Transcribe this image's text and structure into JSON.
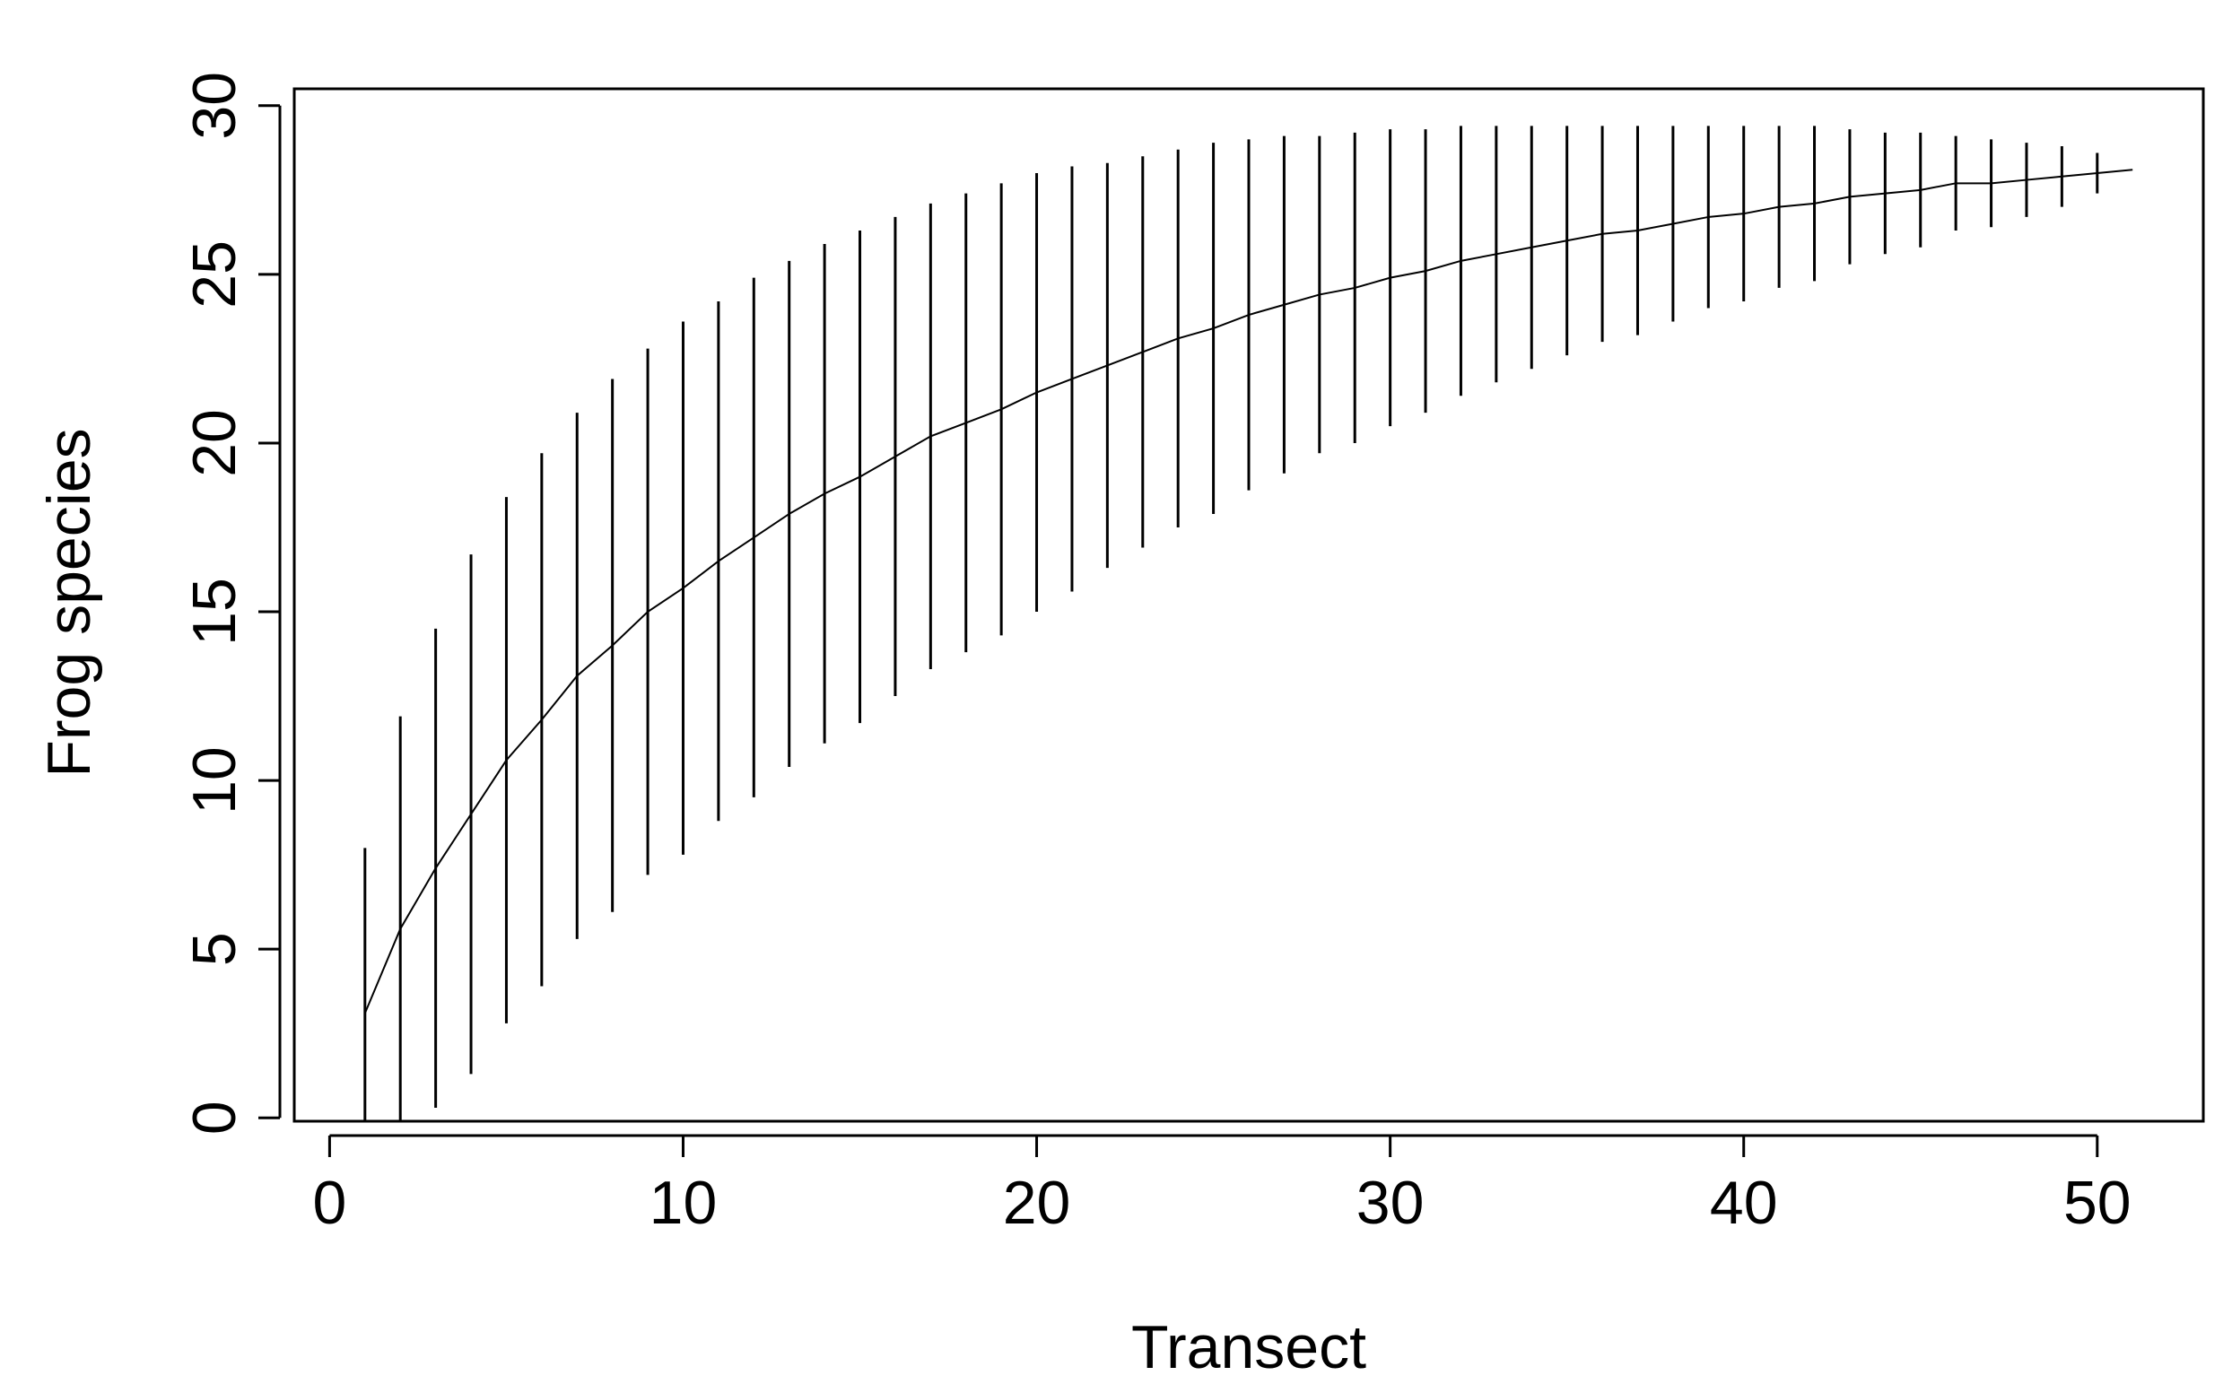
{
  "chart_data": {
    "type": "errorbar-line",
    "xlabel": "Transect",
    "ylabel": "Frog species",
    "x": [
      1,
      2,
      3,
      4,
      5,
      6,
      7,
      8,
      9,
      10,
      11,
      12,
      13,
      14,
      15,
      16,
      17,
      18,
      19,
      20,
      21,
      22,
      23,
      24,
      25,
      26,
      27,
      28,
      29,
      30,
      31,
      32,
      33,
      34,
      35,
      36,
      37,
      38,
      39,
      40,
      41,
      42,
      43,
      44,
      45,
      46,
      47,
      48,
      49,
      50,
      51
    ],
    "values": [
      3.1,
      5.6,
      7.4,
      9.0,
      10.6,
      11.8,
      13.1,
      14.0,
      15.0,
      15.7,
      16.5,
      17.2,
      17.9,
      18.5,
      19.0,
      19.6,
      20.2,
      20.6,
      21.0,
      21.5,
      21.9,
      22.3,
      22.7,
      23.1,
      23.4,
      23.8,
      24.1,
      24.4,
      24.6,
      24.9,
      25.1,
      25.4,
      25.6,
      25.8,
      26.0,
      26.2,
      26.3,
      26.5,
      26.7,
      26.8,
      27.0,
      27.1,
      27.3,
      27.4,
      27.5,
      27.7,
      27.7,
      27.8,
      27.9,
      28.0,
      28.1
    ],
    "errors": [
      4.9,
      6.3,
      7.1,
      7.7,
      7.8,
      7.9,
      7.8,
      7.9,
      7.8,
      7.9,
      7.7,
      7.7,
      7.5,
      7.4,
      7.3,
      7.1,
      6.9,
      6.8,
      6.7,
      6.5,
      6.3,
      6.0,
      5.8,
      5.6,
      5.5,
      5.2,
      5.0,
      4.7,
      4.6,
      4.4,
      4.2,
      4.0,
      3.8,
      3.6,
      3.4,
      3.2,
      3.1,
      2.9,
      2.7,
      2.6,
      2.4,
      2.3,
      2.0,
      1.8,
      1.7,
      1.4,
      1.3,
      1.1,
      0.9,
      0.6,
      0
    ],
    "color": "#000000",
    "xlim": [
      -1,
      53
    ],
    "xticks": [
      0,
      10,
      20,
      30,
      40,
      50
    ],
    "ylim": [
      -0.1,
      30.5
    ],
    "yticks": [
      0,
      5,
      10,
      15,
      20,
      25,
      30
    ]
  }
}
